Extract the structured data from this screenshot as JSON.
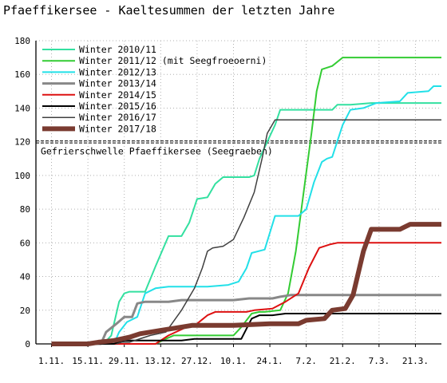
{
  "chart_data": {
    "type": "line",
    "title": "Pfaeffikersee - Kaeltesummen der letzten Jahre",
    "xlabel": "",
    "ylabel": "",
    "ylim": [
      0,
      180
    ],
    "yticks": [
      0,
      20,
      40,
      60,
      80,
      100,
      120,
      140,
      160,
      180
    ],
    "x_tick_labels": [
      "1.11.",
      "15.11.",
      "29.11.",
      "13.12.",
      "27.12.",
      "10.1.",
      "24.1.",
      "7.2.",
      "21.2.",
      "7.3.",
      "21.3."
    ],
    "x_unit": "days since 1.11.",
    "xlim": [
      -6,
      150
    ],
    "grid": true,
    "legend_position": "top-left",
    "threshold": {
      "value": 120,
      "label": "Gefrierschwelle Pfaeffikersee (Seegraeben)",
      "color": "#000000",
      "style": "dashed"
    },
    "series": [
      {
        "name": "Winter 2010/11",
        "color": "#33e0a0",
        "width": 2,
        "points": [
          [
            14,
            0
          ],
          [
            20,
            0
          ],
          [
            23,
            5
          ],
          [
            26,
            25
          ],
          [
            28,
            30
          ],
          [
            30,
            31
          ],
          [
            36,
            31
          ],
          [
            40,
            46
          ],
          [
            45,
            64
          ],
          [
            50,
            64
          ],
          [
            53,
            72
          ],
          [
            56,
            86
          ],
          [
            60,
            87
          ],
          [
            63,
            95
          ],
          [
            66,
            99
          ],
          [
            76,
            99
          ],
          [
            78,
            100
          ],
          [
            80,
            110
          ],
          [
            83,
            120
          ],
          [
            86,
            130
          ],
          [
            88,
            139
          ],
          [
            108,
            139
          ],
          [
            110,
            142
          ],
          [
            115,
            142
          ],
          [
            123,
            143
          ],
          [
            150,
            143
          ]
        ]
      },
      {
        "name": "Winter 2011/12 (mit Seegfroeoerni)",
        "color": "#33cc33",
        "width": 2,
        "points": [
          [
            40,
            0
          ],
          [
            44,
            3
          ],
          [
            47,
            5
          ],
          [
            70,
            5
          ],
          [
            73,
            10
          ],
          [
            77,
            18
          ],
          [
            80,
            19
          ],
          [
            82,
            19
          ],
          [
            88,
            20
          ],
          [
            91,
            30
          ],
          [
            94,
            55
          ],
          [
            97,
            90
          ],
          [
            100,
            125
          ],
          [
            102,
            150
          ],
          [
            104,
            163
          ],
          [
            108,
            165
          ],
          [
            112,
            170
          ],
          [
            150,
            170
          ]
        ]
      },
      {
        "name": "Winter 2012/13",
        "color": "#22e0e8",
        "width": 2,
        "points": [
          [
            15,
            0
          ],
          [
            24,
            0
          ],
          [
            26,
            7
          ],
          [
            29,
            13
          ],
          [
            33,
            16
          ],
          [
            36,
            30
          ],
          [
            40,
            33
          ],
          [
            45,
            34
          ],
          [
            60,
            34
          ],
          [
            68,
            35
          ],
          [
            72,
            37
          ],
          [
            75,
            45
          ],
          [
            77,
            54
          ],
          [
            82,
            56
          ],
          [
            86,
            76
          ],
          [
            95,
            76
          ],
          [
            98,
            80
          ],
          [
            101,
            96
          ],
          [
            104,
            108
          ],
          [
            106,
            110
          ],
          [
            108,
            111
          ],
          [
            112,
            130
          ],
          [
            115,
            139
          ],
          [
            120,
            140
          ],
          [
            125,
            143
          ],
          [
            134,
            144
          ],
          [
            137,
            149
          ],
          [
            145,
            150
          ],
          [
            147,
            153
          ],
          [
            150,
            153
          ]
        ]
      },
      {
        "name": "Winter 2013/14",
        "color": "#888888",
        "width": 3,
        "points": [
          [
            14,
            0
          ],
          [
            19,
            0
          ],
          [
            21,
            7
          ],
          [
            25,
            12
          ],
          [
            28,
            16
          ],
          [
            31,
            16
          ],
          [
            33,
            24
          ],
          [
            36,
            25
          ],
          [
            45,
            25
          ],
          [
            50,
            26
          ],
          [
            55,
            26
          ],
          [
            70,
            26
          ],
          [
            76,
            27
          ],
          [
            80,
            27
          ],
          [
            85,
            27
          ],
          [
            88,
            28
          ],
          [
            92,
            29
          ],
          [
            150,
            29
          ]
        ]
      },
      {
        "name": "Winter 2014/15",
        "color": "#dd1111",
        "width": 2,
        "points": [
          [
            0,
            0
          ],
          [
            13,
            0
          ],
          [
            25,
            0
          ],
          [
            40,
            0
          ],
          [
            45,
            5
          ],
          [
            52,
            10
          ],
          [
            56,
            12
          ],
          [
            60,
            17
          ],
          [
            63,
            19
          ],
          [
            75,
            19
          ],
          [
            78,
            20
          ],
          [
            85,
            21
          ],
          [
            90,
            25
          ],
          [
            95,
            30
          ],
          [
            99,
            45
          ],
          [
            103,
            57
          ],
          [
            107,
            59
          ],
          [
            110,
            60
          ],
          [
            150,
            60
          ]
        ]
      },
      {
        "name": "Winter 2015/16",
        "color": "#000000",
        "width": 2,
        "points": [
          [
            0,
            0
          ],
          [
            24,
            0
          ],
          [
            28,
            2
          ],
          [
            35,
            2
          ],
          [
            50,
            2
          ],
          [
            55,
            3
          ],
          [
            73,
            3
          ],
          [
            77,
            15
          ],
          [
            80,
            17
          ],
          [
            85,
            17
          ],
          [
            90,
            18
          ],
          [
            150,
            18
          ]
        ]
      },
      {
        "name": "Winter 2016/17",
        "color": "#404040",
        "width": 1.5,
        "points": [
          [
            25,
            0
          ],
          [
            27,
            1
          ],
          [
            30,
            1
          ],
          [
            38,
            5
          ],
          [
            44,
            7
          ],
          [
            50,
            20
          ],
          [
            55,
            33
          ],
          [
            58,
            45
          ],
          [
            60,
            55
          ],
          [
            62,
            57
          ],
          [
            66,
            58
          ],
          [
            70,
            62
          ],
          [
            74,
            75
          ],
          [
            78,
            90
          ],
          [
            81,
            110
          ],
          [
            83,
            125
          ],
          [
            86,
            133
          ],
          [
            92,
            133
          ],
          [
            96,
            133
          ],
          [
            150,
            133
          ]
        ]
      },
      {
        "name": "Winter 2017/18",
        "color": "#7a3b30",
        "width": 6,
        "points": [
          [
            0,
            0
          ],
          [
            14,
            0
          ],
          [
            18,
            1
          ],
          [
            24,
            2
          ],
          [
            30,
            4
          ],
          [
            34,
            6
          ],
          [
            42,
            8
          ],
          [
            50,
            10
          ],
          [
            54,
            11
          ],
          [
            70,
            11
          ],
          [
            84,
            12
          ],
          [
            90,
            12
          ],
          [
            95,
            12
          ],
          [
            98,
            14
          ],
          [
            105,
            15
          ],
          [
            108,
            20
          ],
          [
            113,
            21
          ],
          [
            116,
            29
          ],
          [
            120,
            55
          ],
          [
            123,
            68
          ],
          [
            134,
            68
          ],
          [
            138,
            71
          ],
          [
            150,
            71
          ]
        ]
      }
    ]
  }
}
